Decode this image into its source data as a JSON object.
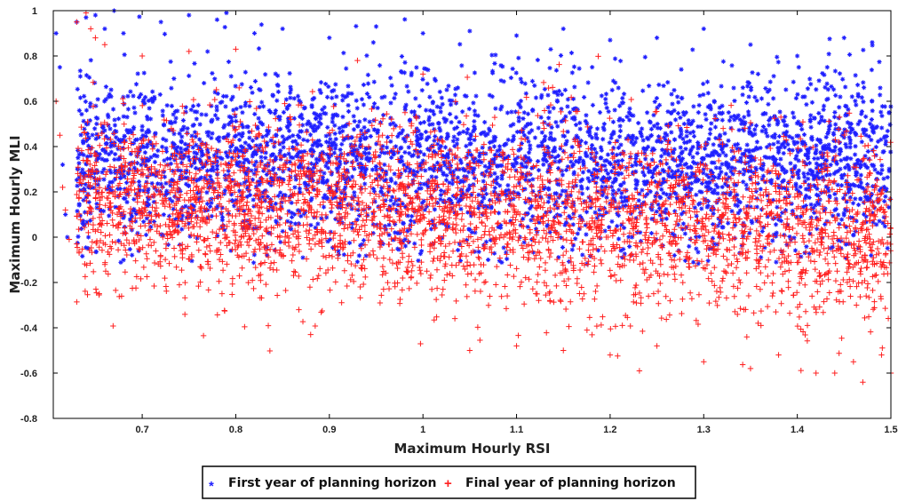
{
  "chart_data": {
    "type": "scatter",
    "xlabel": "Maximum Hourly RSI",
    "ylabel": "Maximum Hourly MLI",
    "xlim": [
      0.605,
      1.5
    ],
    "ylim": [
      -0.8,
      1
    ],
    "xticks": [
      "0.7",
      "0.8",
      "0.9",
      "1",
      "1.1",
      "1.2",
      "1.3",
      "1.4",
      "1.5"
    ],
    "yticks": [
      "-0.8",
      "-0.6",
      "-0.4",
      "-0.2",
      "0",
      "0.2",
      "0.4",
      "0.6",
      "0.8",
      "1"
    ],
    "grid": false,
    "legend_position": "bottom-center",
    "series": [
      {
        "name": "First year of planning horizon",
        "marker": "asterisk",
        "color": "#1f1fff",
        "trend": {
          "x": [
            0.63,
            1.5
          ],
          "mean": [
            0.34,
            0.34
          ],
          "spread": [
            0.3,
            0.3
          ]
        },
        "x": [
          0.608,
          0.612,
          0.615,
          0.618,
          0.62,
          0.63,
          0.64,
          0.65,
          0.66,
          0.67,
          0.68,
          0.72,
          0.75,
          0.78,
          0.79,
          0.82,
          0.85,
          0.9,
          0.95,
          1.0,
          1.05,
          1.1,
          1.15,
          1.2,
          1.25,
          1.3,
          1.35,
          1.4,
          1.45,
          1.48
        ],
        "y": [
          0.9,
          0.75,
          0.32,
          0.1,
          0.0,
          0.95,
          0.97,
          0.98,
          0.92,
          1.0,
          0.9,
          0.95,
          0.98,
          0.96,
          0.99,
          0.9,
          0.92,
          0.88,
          0.93,
          0.9,
          0.91,
          0.89,
          0.92,
          0.87,
          0.88,
          0.92,
          0.85,
          0.8,
          0.88,
          0.86
        ]
      },
      {
        "name": "Final year of planning horizon",
        "marker": "plus",
        "color": "#ff1f1f",
        "trend": {
          "x": [
            0.63,
            1.5
          ],
          "mean": [
            0.18,
            0.0
          ],
          "spread": [
            0.3,
            0.32
          ]
        },
        "x": [
          0.608,
          0.612,
          0.615,
          0.618,
          0.622,
          0.63,
          0.64,
          0.645,
          0.65,
          0.66,
          0.7,
          0.75,
          0.8,
          0.88,
          0.93,
          1.0,
          1.05,
          1.1,
          1.15,
          1.2,
          1.25,
          1.3,
          1.35,
          1.38,
          1.42,
          1.44,
          1.46,
          1.47,
          1.49,
          1.5
        ],
        "y": [
          0.6,
          0.45,
          0.22,
          0.12,
          -0.01,
          0.95,
          0.99,
          0.92,
          0.88,
          0.85,
          0.8,
          0.82,
          0.83,
          -0.43,
          0.78,
          0.72,
          -0.5,
          -0.48,
          -0.5,
          -0.52,
          -0.48,
          -0.55,
          -0.58,
          -0.52,
          -0.6,
          -0.6,
          -0.55,
          -0.64,
          -0.52,
          -0.6
        ]
      }
    ]
  }
}
